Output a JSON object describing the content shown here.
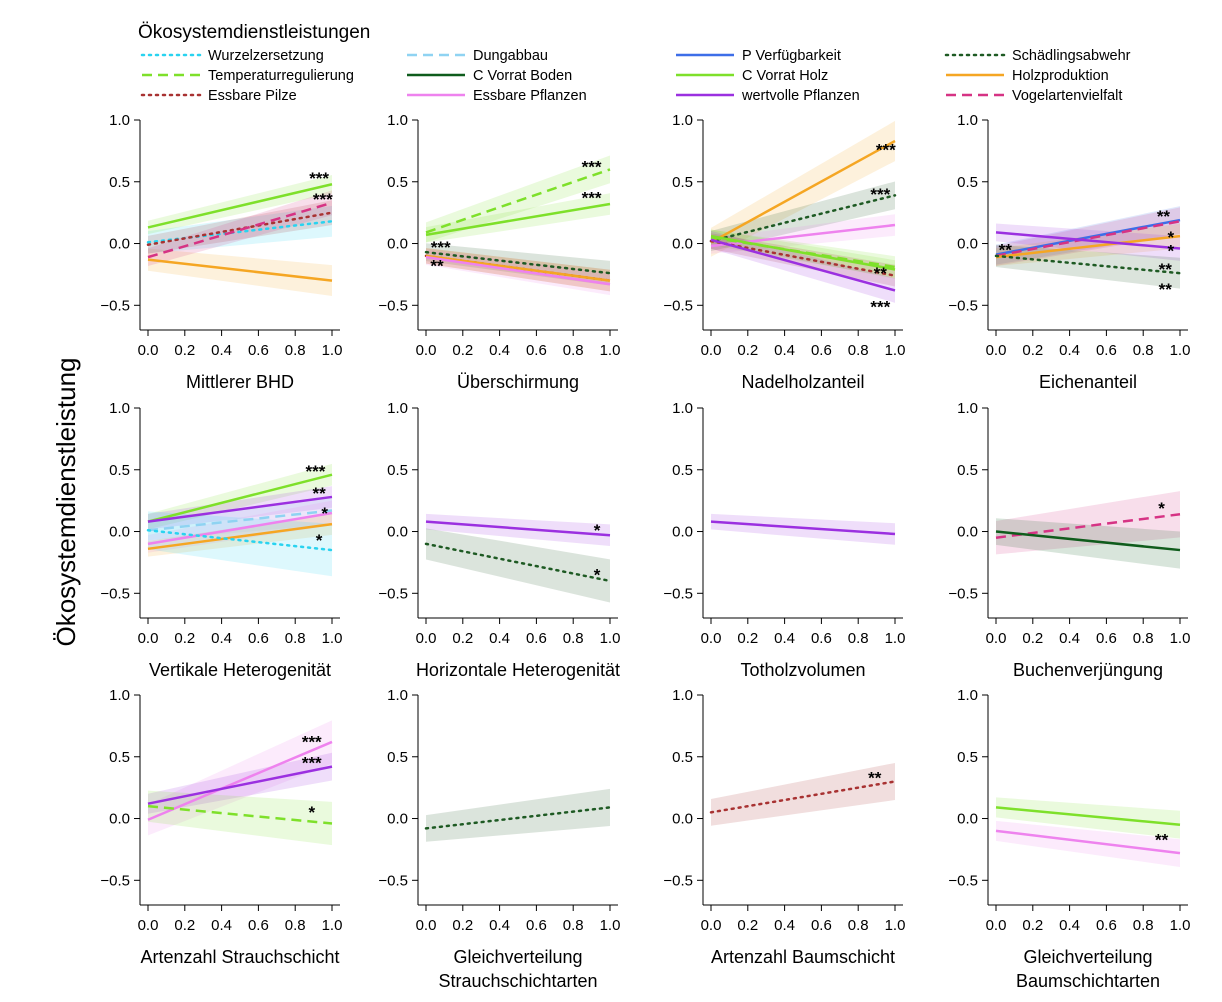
{
  "figure": {
    "ylabel": "Ökosystemdienstleistung"
  },
  "legend": {
    "title": "Ökosystemdienstleistungen",
    "placement": "top",
    "entries": [
      {
        "id": "wurzel",
        "label": "Wurzelzersetzung",
        "color": "#29d3f0",
        "dash": "dotted"
      },
      {
        "id": "temp",
        "label": "Temperaturregulierung",
        "color": "#7ee02a",
        "dash": "dashed"
      },
      {
        "id": "pilze",
        "label": "Essbare Pilze",
        "color": "#a83232",
        "dash": "dotted"
      },
      {
        "id": "dung",
        "label": "Dungabbau",
        "color": "#8fd3f2",
        "dash": "dashed"
      },
      {
        "id": "cboden",
        "label": "C Vorrat Boden",
        "color": "#0f5c1c",
        "dash": "solid"
      },
      {
        "id": "epfl",
        "label": "Essbare Pflanzen",
        "color": "#ee82ee",
        "dash": "solid"
      },
      {
        "id": "pverf",
        "label": "P Verfügbarkeit",
        "color": "#3d6ee8",
        "dash": "solid"
      },
      {
        "id": "choz",
        "label": "C Vorrat Holz",
        "color": "#7ee02a",
        "dash": "solid"
      },
      {
        "id": "wpfl",
        "label": "wertvolle  Pflanzen",
        "color": "#9b30e0",
        "dash": "solid"
      },
      {
        "id": "schad",
        "label": "Schädlingsabwehr",
        "color": "#1e5a23",
        "dash": "dotted"
      },
      {
        "id": "holz",
        "label": "Holzproduktion",
        "color": "#f5a623",
        "dash": "solid"
      },
      {
        "id": "vogel",
        "label": "Vogelartenvielfalt",
        "color": "#d63384",
        "dash": "dashed"
      }
    ]
  },
  "chart_data": [
    {
      "type": "line",
      "xlabel": "Mittlerer BHD",
      "xlim": [
        0,
        1
      ],
      "ylim": [
        -0.7,
        1.0
      ],
      "xticks": [
        "0.0",
        "0.2",
        "0.4",
        "0.6",
        "0.8",
        "1.0"
      ],
      "yticks": [
        "1.0",
        "0.5",
        "0.0",
        "−0.5"
      ],
      "series": [
        {
          "ref": "holz",
          "x": [
            0,
            1
          ],
          "y": [
            -0.13,
            -0.3
          ],
          "ci": 0.1
        },
        {
          "ref": "wurzel",
          "x": [
            0,
            1
          ],
          "y": [
            0.01,
            0.18
          ],
          "ci": 0.1
        },
        {
          "ref": "pilze",
          "x": [
            0,
            1
          ],
          "y": [
            -0.01,
            0.25
          ],
          "ci": 0.08
        },
        {
          "ref": "vogel",
          "x": [
            0,
            1
          ],
          "y": [
            -0.11,
            0.33
          ],
          "ci": 0.08
        },
        {
          "ref": "choz",
          "x": [
            0,
            1
          ],
          "y": [
            0.13,
            0.48
          ],
          "ci": 0.06
        }
      ],
      "annotations": [
        {
          "text": "***",
          "x": 0.93,
          "y": 0.54
        },
        {
          "text": "***",
          "x": 0.95,
          "y": 0.37
        }
      ]
    },
    {
      "type": "line",
      "xlabel": "Überschirmung",
      "xlim": [
        0,
        1
      ],
      "ylim": [
        -0.7,
        1.0
      ],
      "xticks": [
        "0.0",
        "0.2",
        "0.4",
        "0.6",
        "0.8",
        "1.0"
      ],
      "yticks": [
        "1.0",
        "0.5",
        "0.0",
        "−0.5"
      ],
      "series": [
        {
          "ref": "temp",
          "x": [
            0,
            1
          ],
          "y": [
            0.09,
            0.6
          ],
          "ci": 0.09
        },
        {
          "ref": "choz",
          "x": [
            0,
            1
          ],
          "y": [
            0.07,
            0.32
          ],
          "ci": 0.07
        },
        {
          "ref": "schad",
          "x": [
            0,
            1
          ],
          "y": [
            -0.07,
            -0.24
          ],
          "ci": 0.08
        },
        {
          "ref": "pilze",
          "x": [
            0,
            1
          ],
          "y": [
            -0.1,
            -0.3
          ],
          "ci": 0.07
        },
        {
          "ref": "holz",
          "x": [
            0,
            1
          ],
          "y": [
            -0.1,
            -0.3
          ],
          "ci": 0.07
        },
        {
          "ref": "epfl",
          "x": [
            0,
            1
          ],
          "y": [
            -0.11,
            -0.33
          ],
          "ci": 0.07
        }
      ],
      "annotations": [
        {
          "text": "***",
          "x": 0.9,
          "y": 0.63
        },
        {
          "text": "***",
          "x": 0.9,
          "y": 0.38
        },
        {
          "text": "***",
          "x": 0.08,
          "y": -0.02
        },
        {
          "text": "**",
          "x": 0.06,
          "y": -0.17
        }
      ]
    },
    {
      "type": "line",
      "xlabel": "Nadelholzanteil",
      "xlim": [
        0,
        1
      ],
      "ylim": [
        -0.7,
        1.0
      ],
      "xticks": [
        "0.0",
        "0.2",
        "0.4",
        "0.6",
        "0.8",
        "1.0"
      ],
      "yticks": [
        "1.0",
        "0.5",
        "0.0",
        "−0.5"
      ],
      "series": [
        {
          "ref": "holz",
          "x": [
            0,
            1
          ],
          "y": [
            0.01,
            0.83
          ],
          "ci": 0.13
        },
        {
          "ref": "schad",
          "x": [
            0,
            1
          ],
          "y": [
            0.02,
            0.39
          ],
          "ci": 0.09
        },
        {
          "ref": "epfl",
          "x": [
            0,
            1
          ],
          "y": [
            -0.02,
            0.15
          ],
          "ci": 0.07
        },
        {
          "ref": "temp",
          "x": [
            0,
            1
          ],
          "y": [
            0.05,
            -0.19
          ],
          "ci": 0.07
        },
        {
          "ref": "choz",
          "x": [
            0,
            1
          ],
          "y": [
            0.06,
            -0.21
          ],
          "ci": 0.06
        },
        {
          "ref": "pilze",
          "x": [
            0,
            1
          ],
          "y": [
            0.02,
            -0.26
          ],
          "ci": 0.07
        },
        {
          "ref": "wpfl",
          "x": [
            0,
            1
          ],
          "y": [
            0.03,
            -0.38
          ],
          "ci": 0.08
        }
      ],
      "annotations": [
        {
          "text": "***",
          "x": 0.95,
          "y": 0.77
        },
        {
          "text": "***",
          "x": 0.92,
          "y": 0.41
        },
        {
          "text": "**",
          "x": 0.92,
          "y": -0.23
        },
        {
          "text": "***",
          "x": 0.92,
          "y": -0.5
        }
      ]
    },
    {
      "type": "line",
      "xlabel": "Eichenanteil",
      "xlim": [
        0,
        1
      ],
      "ylim": [
        -0.7,
        1.0
      ],
      "xticks": [
        "0.0",
        "0.2",
        "0.4",
        "0.6",
        "0.8",
        "1.0"
      ],
      "yticks": [
        "1.0",
        "0.5",
        "0.0",
        "−0.5"
      ],
      "series": [
        {
          "ref": "pverf",
          "x": [
            0,
            1
          ],
          "y": [
            -0.09,
            0.19
          ],
          "ci": 0.09
        },
        {
          "ref": "vogel",
          "x": [
            0,
            1
          ],
          "y": [
            -0.1,
            0.18
          ],
          "ci": 0.09
        },
        {
          "ref": "holz",
          "x": [
            0,
            1
          ],
          "y": [
            -0.11,
            0.06
          ],
          "ci": 0.08
        },
        {
          "ref": "wpfl",
          "x": [
            0,
            1
          ],
          "y": [
            0.09,
            -0.04
          ],
          "ci": 0.08
        },
        {
          "ref": "schad",
          "x": [
            0,
            1
          ],
          "y": [
            -0.1,
            -0.24
          ],
          "ci": 0.1
        }
      ],
      "annotations": [
        {
          "text": "**",
          "x": 0.05,
          "y": -0.04
        },
        {
          "text": "**",
          "x": 0.91,
          "y": 0.23
        },
        {
          "text": "*",
          "x": 0.95,
          "y": 0.06
        },
        {
          "text": "*",
          "x": 0.95,
          "y": -0.05
        },
        {
          "text": "**",
          "x": 0.92,
          "y": -0.2
        },
        {
          "text": "**",
          "x": 0.92,
          "y": -0.36
        }
      ]
    },
    {
      "type": "line",
      "xlabel": "Vertikale Heterogenität",
      "xlim": [
        0,
        1
      ],
      "ylim": [
        -0.7,
        1.0
      ],
      "xticks": [
        "0.0",
        "0.2",
        "0.4",
        "0.6",
        "0.8",
        "1.0"
      ],
      "yticks": [
        "1.0",
        "0.5",
        "0.0",
        "−0.5"
      ],
      "series": [
        {
          "ref": "choz",
          "x": [
            0,
            1
          ],
          "y": [
            0.08,
            0.46
          ],
          "ci": 0.07
        },
        {
          "ref": "wpfl",
          "x": [
            0,
            1
          ],
          "y": [
            0.08,
            0.28
          ],
          "ci": 0.07
        },
        {
          "ref": "dung",
          "x": [
            0,
            1
          ],
          "y": [
            0.01,
            0.17
          ],
          "ci": 0.09
        },
        {
          "ref": "epfl",
          "x": [
            0,
            1
          ],
          "y": [
            -0.1,
            0.15
          ],
          "ci": 0.08
        },
        {
          "ref": "holz",
          "x": [
            0,
            1
          ],
          "y": [
            -0.14,
            0.06
          ],
          "ci": 0.07
        },
        {
          "ref": "wurzel",
          "x": [
            0,
            1
          ],
          "y": [
            0.01,
            -0.15
          ],
          "ci": 0.17
        }
      ],
      "annotations": [
        {
          "text": "***",
          "x": 0.91,
          "y": 0.5
        },
        {
          "text": "**",
          "x": 0.93,
          "y": 0.32
        },
        {
          "text": "*",
          "x": 0.96,
          "y": 0.16
        },
        {
          "text": "*",
          "x": 0.93,
          "y": -0.06
        }
      ]
    },
    {
      "type": "line",
      "xlabel": "Horizontale Heterogenität",
      "xlim": [
        0,
        1
      ],
      "ylim": [
        -0.7,
        1.0
      ],
      "xticks": [
        "0.0",
        "0.2",
        "0.4",
        "0.6",
        "0.8",
        "1.0"
      ],
      "yticks": [
        "1.0",
        "0.5",
        "0.0",
        "−0.5"
      ],
      "series": [
        {
          "ref": "wpfl",
          "x": [
            0,
            1
          ],
          "y": [
            0.08,
            -0.03
          ],
          "ci": 0.07
        },
        {
          "ref": "schad",
          "x": [
            0,
            1
          ],
          "y": [
            -0.1,
            -0.4
          ],
          "ci": 0.14
        }
      ],
      "annotations": [
        {
          "text": "*",
          "x": 0.93,
          "y": 0.02
        },
        {
          "text": "*",
          "x": 0.93,
          "y": -0.34
        }
      ]
    },
    {
      "type": "line",
      "xlabel": "Totholzvolumen",
      "xlim": [
        0,
        1
      ],
      "ylim": [
        -0.7,
        1.0
      ],
      "xticks": [
        "0.0",
        "0.2",
        "0.4",
        "0.6",
        "0.8",
        "1.0"
      ],
      "yticks": [
        "1.0",
        "0.5",
        "0.0",
        "−0.5"
      ],
      "series": [
        {
          "ref": "wpfl",
          "x": [
            0,
            1
          ],
          "y": [
            0.08,
            -0.02
          ],
          "ci": 0.07
        }
      ],
      "annotations": []
    },
    {
      "type": "line",
      "xlabel": "Buchenverjüngung",
      "xlim": [
        0,
        1
      ],
      "ylim": [
        -0.7,
        1.0
      ],
      "xticks": [
        "0.0",
        "0.2",
        "0.4",
        "0.6",
        "0.8",
        "1.0"
      ],
      "yticks": [
        "1.0",
        "0.5",
        "0.0",
        "−0.5"
      ],
      "series": [
        {
          "ref": "vogel",
          "x": [
            0,
            1
          ],
          "y": [
            -0.05,
            0.14
          ],
          "ci": 0.15
        },
        {
          "ref": "cboden",
          "x": [
            0,
            1
          ],
          "y": [
            0.0,
            -0.15
          ],
          "ci": 0.12
        }
      ],
      "annotations": [
        {
          "text": "*",
          "x": 0.9,
          "y": 0.2
        }
      ]
    },
    {
      "type": "line",
      "xlabel": "Artenzahl Strauchschicht",
      "xlim": [
        0,
        1
      ],
      "ylim": [
        -0.7,
        1.0
      ],
      "xticks": [
        "0.0",
        "0.2",
        "0.4",
        "0.6",
        "0.8",
        "1.0"
      ],
      "yticks": [
        "1.0",
        "0.5",
        "0.0",
        "−0.5"
      ],
      "series": [
        {
          "ref": "epfl",
          "x": [
            0,
            1
          ],
          "y": [
            -0.01,
            0.62
          ],
          "ci": 0.14
        },
        {
          "ref": "wpfl",
          "x": [
            0,
            1
          ],
          "y": [
            0.12,
            0.42
          ],
          "ci": 0.09
        },
        {
          "ref": "temp",
          "x": [
            0,
            1
          ],
          "y": [
            0.1,
            -0.04
          ],
          "ci": 0.14
        }
      ],
      "annotations": [
        {
          "text": "***",
          "x": 0.89,
          "y": 0.63
        },
        {
          "text": "***",
          "x": 0.89,
          "y": 0.46
        },
        {
          "text": "*",
          "x": 0.89,
          "y": 0.06
        }
      ]
    },
    {
      "type": "line",
      "xlabel": "Gleichverteilung\nStrauchschichtarten",
      "xlim": [
        0,
        1
      ],
      "ylim": [
        -0.7,
        1.0
      ],
      "xticks": [
        "0.0",
        "0.2",
        "0.4",
        "0.6",
        "0.8",
        "1.0"
      ],
      "yticks": [
        "1.0",
        "0.5",
        "0.0",
        "−0.5"
      ],
      "series": [
        {
          "ref": "schad",
          "x": [
            0,
            1
          ],
          "y": [
            -0.08,
            0.09
          ],
          "ci": 0.12
        }
      ],
      "annotations": []
    },
    {
      "type": "line",
      "xlabel": "Artenzahl Baumschicht",
      "xlim": [
        0,
        1
      ],
      "ylim": [
        -0.7,
        1.0
      ],
      "xticks": [
        "0.0",
        "0.2",
        "0.4",
        "0.6",
        "0.8",
        "1.0"
      ],
      "yticks": [
        "1.0",
        "0.5",
        "0.0",
        "−0.5"
      ],
      "series": [
        {
          "ref": "pilze",
          "x": [
            0,
            1
          ],
          "y": [
            0.05,
            0.3
          ],
          "ci": 0.12
        }
      ],
      "annotations": [
        {
          "text": "**",
          "x": 0.89,
          "y": 0.34
        }
      ]
    },
    {
      "type": "line",
      "xlabel": "Gleichverteilung\nBaumschichtarten",
      "xlim": [
        0,
        1
      ],
      "ylim": [
        -0.7,
        1.0
      ],
      "xticks": [
        "0.0",
        "0.2",
        "0.4",
        "0.6",
        "0.8",
        "1.0"
      ],
      "yticks": [
        "1.0",
        "0.5",
        "0.0",
        "−0.5"
      ],
      "series": [
        {
          "ref": "choz",
          "x": [
            0,
            1
          ],
          "y": [
            0.09,
            -0.05
          ],
          "ci": 0.09
        },
        {
          "ref": "epfl",
          "x": [
            0,
            1
          ],
          "y": [
            -0.1,
            -0.28
          ],
          "ci": 0.09
        }
      ],
      "annotations": [
        {
          "text": "**",
          "x": 0.9,
          "y": -0.16
        }
      ]
    }
  ]
}
